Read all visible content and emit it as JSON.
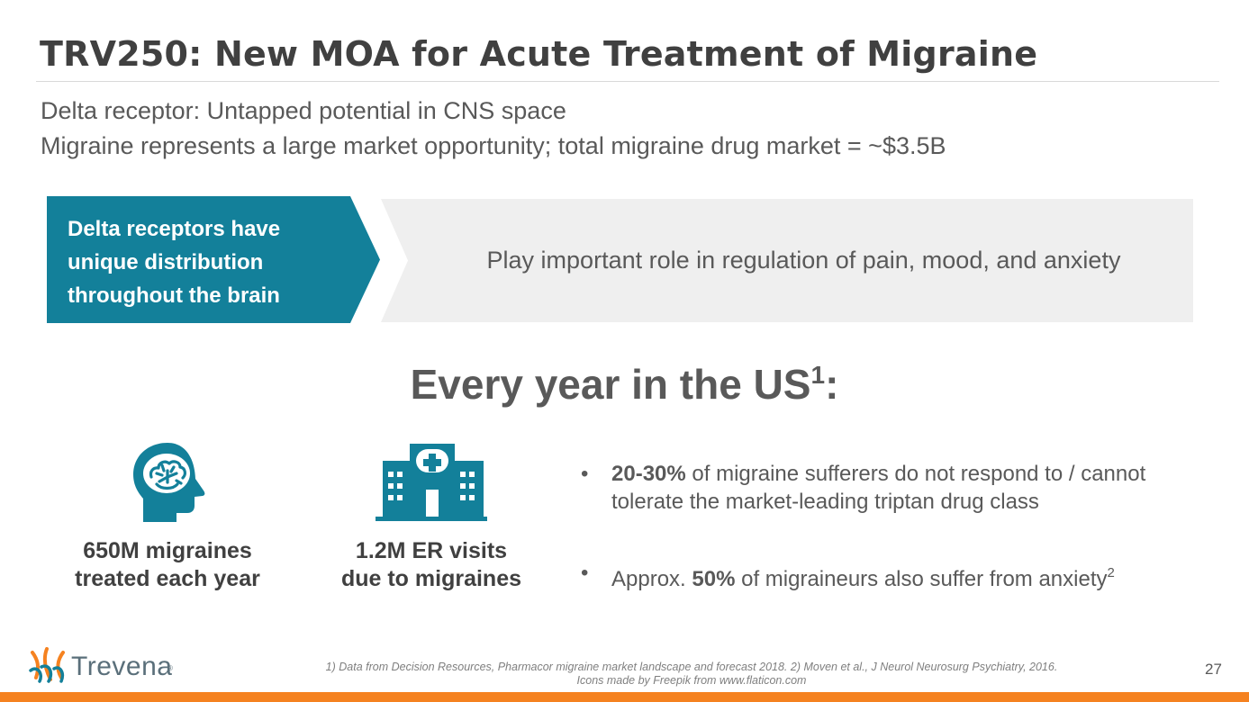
{
  "slide": {
    "title": "TRV250: New MOA for Acute Treatment of Migraine",
    "subtitle_1": "Delta receptor: Untapped potential in CNS space",
    "subtitle_2": "Migraine represents a large market opportunity; total migraine drug market = ~$3.5B"
  },
  "banner": {
    "chevron_lines": [
      "Delta receptors have",
      "unique distribution",
      "throughout the brain"
    ],
    "statement": "Play important role in regulation of pain, mood, and anxiety"
  },
  "every_year": {
    "text": "Every year in the US",
    "sup": "1",
    "suffix": ":"
  },
  "stats": [
    {
      "icon": "brain-head-icon",
      "lines": [
        "650M migraines",
        "treated each year"
      ]
    },
    {
      "icon": "hospital-icon",
      "lines": [
        "1.2M ER visits",
        "due to migraines"
      ]
    }
  ],
  "bullets": [
    {
      "bold": "20-30%",
      "text": " of migraine sufferers do not respond to / cannot tolerate the market-leading triptan drug class"
    },
    {
      "prefix": "Approx. ",
      "bold": "50%",
      "text": " of migraineurs also suffer from anxiety",
      "sup": "2"
    }
  ],
  "footer": {
    "logo_text": "Trevena",
    "logo_mark": "®",
    "footnote_1": "1) Data from Decision Resources, Pharmacor migraine market landscape and forecast 2018. 2) Moven et al., J Neurol Neurosurg Psychiatry, 2016.",
    "footnote_2": "Icons made by Freepik from www.flaticon.com",
    "page_number": "27"
  },
  "colors": {
    "teal": "#13809a",
    "orange": "#f58220",
    "text_gray": "#595959",
    "banner_gray": "#efefef"
  }
}
